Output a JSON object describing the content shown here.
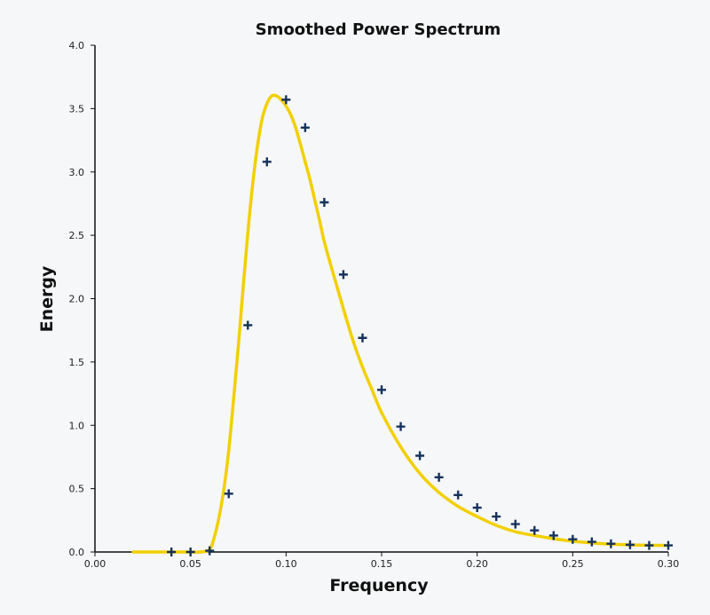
{
  "chart_data": {
    "type": "line",
    "title": "Smoothed Power Spectrum",
    "xlabel": "Frequency",
    "ylabel": "Energy",
    "xlim": [
      0.0,
      0.3
    ],
    "ylim": [
      0.0,
      4.0
    ],
    "x_ticks": [
      "0.00",
      "0.05",
      "0.10",
      "0.15",
      "0.20",
      "0.25",
      "0.30"
    ],
    "y_ticks": [
      "0.0",
      "0.5",
      "1.0",
      "1.5",
      "2.0",
      "2.5",
      "3.0",
      "3.5",
      "4.0"
    ],
    "grid": false,
    "legend": "none",
    "colors": {
      "curve": "#f2d000",
      "markers": "#16325c",
      "axis": "#111111"
    },
    "curve": {
      "x": [
        0.02,
        0.03,
        0.04,
        0.05,
        0.055,
        0.06,
        0.0625,
        0.065,
        0.0675,
        0.07,
        0.0725,
        0.075,
        0.0775,
        0.08,
        0.0825,
        0.085,
        0.0875,
        0.09,
        0.0925,
        0.095,
        0.0975,
        0.1,
        0.1025,
        0.105,
        0.1075,
        0.11,
        0.1125,
        0.115,
        0.1175,
        0.12,
        0.125,
        0.13,
        0.135,
        0.14,
        0.145,
        0.15,
        0.16,
        0.17,
        0.18,
        0.19,
        0.2,
        0.21,
        0.22,
        0.23,
        0.24,
        0.25,
        0.26,
        0.27,
        0.28,
        0.29,
        0.3
      ],
      "y": [
        0.0,
        0.0,
        0.0,
        0.0,
        0.0,
        0.02,
        0.12,
        0.28,
        0.5,
        0.8,
        1.2,
        1.62,
        2.08,
        2.52,
        2.9,
        3.2,
        3.42,
        3.54,
        3.6,
        3.6,
        3.57,
        3.52,
        3.45,
        3.35,
        3.22,
        3.08,
        2.94,
        2.78,
        2.62,
        2.45,
        2.18,
        1.92,
        1.67,
        1.46,
        1.28,
        1.1,
        0.83,
        0.62,
        0.47,
        0.36,
        0.28,
        0.21,
        0.16,
        0.13,
        0.105,
        0.085,
        0.072,
        0.062,
        0.056,
        0.053,
        0.052
      ]
    },
    "series": [
      {
        "x": [
          0.04,
          0.05,
          0.06,
          0.07,
          0.08,
          0.09,
          0.1,
          0.11,
          0.12,
          0.13,
          0.14,
          0.15,
          0.16,
          0.17,
          0.18,
          0.19,
          0.2,
          0.21,
          0.22,
          0.23,
          0.24,
          0.25,
          0.26,
          0.27,
          0.28,
          0.29,
          0.3
        ],
        "values": [
          0.0,
          0.0,
          0.01,
          0.46,
          1.79,
          3.08,
          3.57,
          3.35,
          2.76,
          2.19,
          1.69,
          1.28,
          0.99,
          0.76,
          0.59,
          0.45,
          0.35,
          0.28,
          0.22,
          0.17,
          0.13,
          0.1,
          0.08,
          0.065,
          0.057,
          0.052,
          0.052
        ]
      }
    ]
  }
}
